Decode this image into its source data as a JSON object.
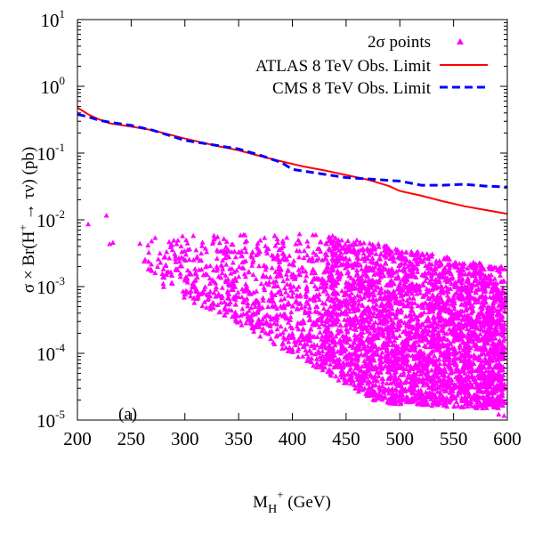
{
  "chart_data": {
    "type": "scatter",
    "panel_label": "(a)",
    "x_axis": {
      "label_main": "M",
      "label_sub": "H",
      "label_sup": "+",
      "label_unit": "(GeV)",
      "range": [
        200,
        600
      ],
      "ticks": [
        200,
        250,
        300,
        350,
        400,
        450,
        500,
        550,
        600
      ],
      "tick_labels": [
        "200",
        "250",
        "300",
        "350",
        "400",
        "450",
        "500",
        "550",
        "600"
      ]
    },
    "y_axis": {
      "label_a": "σ × Br(H",
      "label_sup": "+",
      "label_b": " → τν) (pb)",
      "scale": "log",
      "range": [
        1e-05,
        10
      ],
      "ticks": [
        {
          "value": 10,
          "base": "10",
          "exp": "1"
        },
        {
          "value": 1,
          "base": "10",
          "exp": "0"
        },
        {
          "value": 0.1,
          "base": "10",
          "exp": "-1"
        },
        {
          "value": 0.01,
          "base": "10",
          "exp": "-2"
        },
        {
          "value": 0.001,
          "base": "10",
          "exp": "-3"
        },
        {
          "value": 0.0001,
          "base": "10",
          "exp": "-4"
        },
        {
          "value": 1e-05,
          "base": "10",
          "exp": "-5"
        }
      ]
    },
    "legend": {
      "position": "top-right",
      "entries": [
        {
          "label_pre": "2",
          "label_sigma": "σ",
          "label_post": " points",
          "marker": "triangle",
          "color": "#ff00ff"
        },
        {
          "label": "ATLAS 8 TeV Obs. Limit",
          "style": "solid",
          "color": "#ff0000"
        },
        {
          "label": "CMS 8 TeV Obs. Limit",
          "style": "dashed",
          "color": "#0000ff"
        }
      ]
    },
    "series": [
      {
        "name": "ATLAS 8 TeV Obs. Limit",
        "color": "#ff0000",
        "style": "solid",
        "x": [
          200,
          210,
          220,
          230,
          250,
          270,
          300,
          330,
          350,
          370,
          390,
          410,
          430,
          450,
          470,
          490,
          500,
          520,
          540,
          560,
          580,
          600
        ],
        "y": [
          0.48,
          0.38,
          0.32,
          0.28,
          0.25,
          0.22,
          0.165,
          0.128,
          0.11,
          0.09,
          0.075,
          0.063,
          0.055,
          0.047,
          0.04,
          0.032,
          0.027,
          0.023,
          0.019,
          0.016,
          0.014,
          0.0123
        ]
      },
      {
        "name": "CMS 8 TeV Obs. Limit",
        "color": "#0000ff",
        "style": "dashed",
        "x": [
          200,
          210,
          220,
          230,
          250,
          270,
          300,
          330,
          350,
          370,
          390,
          400,
          410,
          430,
          450,
          470,
          490,
          500,
          520,
          540,
          560,
          580,
          600
        ],
        "y": [
          0.38,
          0.35,
          0.31,
          0.29,
          0.26,
          0.22,
          0.155,
          0.13,
          0.115,
          0.093,
          0.072,
          0.057,
          0.054,
          0.048,
          0.043,
          0.041,
          0.039,
          0.038,
          0.033,
          0.033,
          0.034,
          0.032,
          0.031
        ]
      }
    ],
    "scatter_points": {
      "name": "2σ points",
      "color": "#ff00ff",
      "marker": "triangle",
      "x_range": [
        200,
        600
      ],
      "y_range": [
        1e-05,
        0.012
      ],
      "isolated_points": [
        {
          "x": 210,
          "y": 0.0085
        },
        {
          "x": 227,
          "y": 0.0115
        },
        {
          "x": 233,
          "y": 0.0045
        },
        {
          "x": 230,
          "y": 0.0043
        },
        {
          "x": 263,
          "y": 0.0025
        },
        {
          "x": 268,
          "y": 0.0018
        },
        {
          "x": 283,
          "y": 0.0016
        },
        {
          "x": 300,
          "y": 0.00078
        },
        {
          "x": 318,
          "y": 0.0009
        },
        {
          "x": 532,
          "y": 9.5e-06
        },
        {
          "x": 597,
          "y": 1.15e-05
        },
        {
          "x": 592,
          "y": 1.2e-05
        }
      ]
    }
  }
}
